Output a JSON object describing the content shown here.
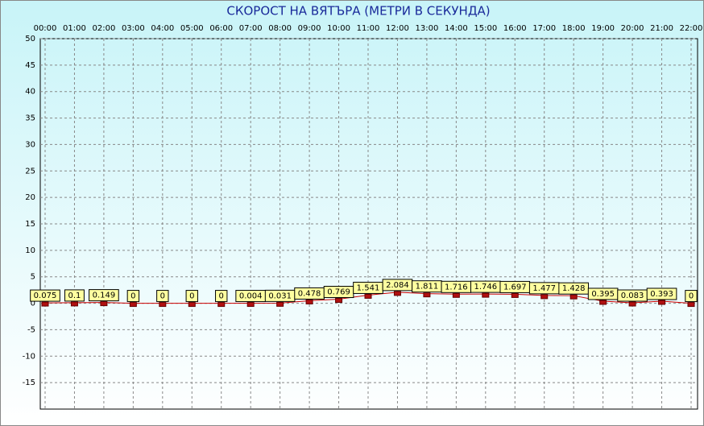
{
  "chart_data": {
    "type": "line",
    "title": "СКОРОСТ НА ВЯТЪРА (МЕТРИ В СЕКУНДА)",
    "categories": [
      "00:00",
      "01:00",
      "02:00",
      "03:00",
      "04:00",
      "05:00",
      "06:00",
      "07:00",
      "08:00",
      "09:00",
      "10:00",
      "11:00",
      "12:00",
      "13:00",
      "14:00",
      "15:00",
      "16:00",
      "17:00",
      "18:00",
      "19:00",
      "20:00",
      "21:00",
      "22:00"
    ],
    "series": [
      {
        "color": "#cc0000",
        "values": [
          0.075,
          0.1,
          0.149,
          0,
          0,
          0,
          0,
          0.004,
          0.031,
          0.478,
          0.769,
          1.541,
          2.084,
          1.811,
          1.716,
          1.746,
          1.697,
          1.477,
          1.428,
          0.395,
          0.083,
          0.393,
          0
        ]
      }
    ],
    "ylim": [
      -20,
      50
    ],
    "yticks": [
      -15,
      -10,
      -5,
      0,
      5,
      10,
      15,
      20,
      25,
      30,
      35,
      40,
      45,
      50
    ],
    "grid": true
  }
}
